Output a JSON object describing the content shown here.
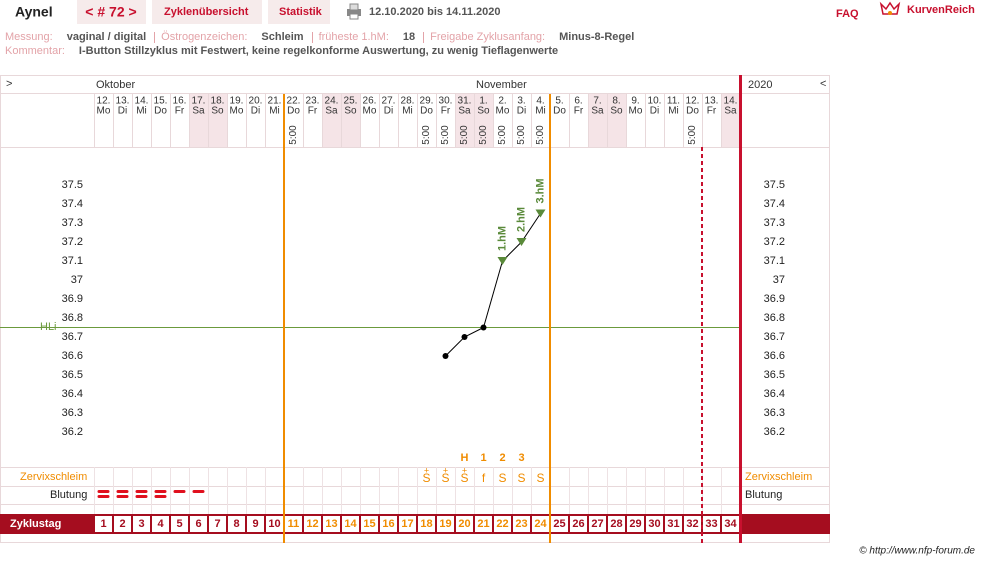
{
  "header": {
    "name": "Aynel",
    "cycle": "< # 72 >",
    "tabs": [
      "Zyklenübersicht",
      "Statistik"
    ],
    "date_range": "12.10.2020 bis 14.11.2020",
    "faq": "FAQ",
    "logo": "KurvenReich"
  },
  "info": {
    "items": [
      {
        "label": "Messung:",
        "value": "vaginal / digital"
      },
      {
        "label": "Östrogenzeichen:",
        "value": "Schleim"
      },
      {
        "label": "früheste 1.hM:",
        "value": 18
      },
      {
        "label": "Freigabe Zyklusanfang:",
        "value": "Minus-8-Regel"
      }
    ],
    "comment_label": "Kommentar:",
    "comment": "I-Button Stillzyklus mit Festwert, keine regelkonforme Auswertung, zu wenig Tieflagenwerte"
  },
  "chart_data": {
    "type": "line",
    "nav": {
      "prev": ">",
      "next": "<"
    },
    "months": [
      "Oktober",
      "November"
    ],
    "year": "2020",
    "categories": [
      "12.",
      "13.",
      "14.",
      "15.",
      "16.",
      "17.",
      "18.",
      "19.",
      "20.",
      "21.",
      "22.",
      "23.",
      "24.",
      "25.",
      "26.",
      "27.",
      "28.",
      "29.",
      "30.",
      "31.",
      "1.",
      "2.",
      "3.",
      "4.",
      "5.",
      "6.",
      "7.",
      "8.",
      "9.",
      "10.",
      "11.",
      "12.",
      "13.",
      "14."
    ],
    "weekdays": [
      "Mo",
      "Di",
      "Mi",
      "Do",
      "Fr",
      "Sa",
      "So",
      "Mo",
      "Di",
      "Mi",
      "Do",
      "Fr",
      "Sa",
      "So",
      "Mo",
      "Di",
      "Mi",
      "Do",
      "Fr",
      "Sa",
      "So",
      "Mo",
      "Di",
      "Mi",
      "Do",
      "Fr",
      "Sa",
      "So",
      "Mo",
      "Di",
      "Mi",
      "Do",
      "Fr",
      "Sa"
    ],
    "times": [
      null,
      null,
      null,
      null,
      null,
      null,
      null,
      null,
      null,
      null,
      "5:00",
      null,
      null,
      null,
      null,
      null,
      null,
      "5:00",
      "5:00",
      "5:00",
      "5:00",
      "5:00",
      "5:00",
      "5:00",
      null,
      null,
      null,
      null,
      null,
      null,
      null,
      "5:00",
      null,
      null
    ],
    "values": [
      null,
      null,
      null,
      null,
      null,
      null,
      null,
      null,
      null,
      null,
      null,
      null,
      null,
      null,
      null,
      null,
      null,
      null,
      36.6,
      36.7,
      36.75,
      37.1,
      37.2,
      37.35,
      null,
      null,
      null,
      null,
      null,
      null,
      null,
      null,
      null,
      null
    ],
    "line_color": "#000000",
    "hm_color": "#5a8a3a",
    "hm_labels": [
      null,
      null,
      null,
      null,
      null,
      null,
      null,
      null,
      null,
      null,
      null,
      null,
      null,
      null,
      null,
      null,
      null,
      null,
      null,
      null,
      null,
      "1.hM",
      "2.hM",
      "3.hM",
      null,
      null,
      null,
      null,
      null,
      null,
      null,
      null,
      null,
      null
    ],
    "ylim": [
      36.2,
      37.5
    ],
    "yticks": [
      36.2,
      36.3,
      36.4,
      36.5,
      36.6,
      36.7,
      36.8,
      36.9,
      37,
      37.1,
      37.2,
      37.3,
      37.4,
      37.5
    ],
    "hli": {
      "label": "HLi",
      "value": 36.75,
      "color": "#6b9a3c"
    },
    "peak_labels": [
      null,
      null,
      null,
      null,
      null,
      null,
      null,
      null,
      null,
      null,
      null,
      null,
      null,
      null,
      null,
      null,
      null,
      null,
      null,
      "H",
      "1",
      "2",
      "3",
      null,
      null,
      null,
      null,
      null,
      null,
      null,
      null,
      null,
      null,
      null
    ],
    "cervix_label": "Zervixschleim",
    "cervix": [
      null,
      null,
      null,
      null,
      null,
      null,
      null,
      null,
      null,
      null,
      null,
      null,
      null,
      null,
      null,
      null,
      null,
      "S",
      "S",
      "S",
      "f",
      "S",
      "S",
      "S",
      null,
      null,
      null,
      null,
      null,
      null,
      null,
      null,
      null,
      null
    ],
    "cervix_plus": [
      null,
      null,
      null,
      null,
      null,
      null,
      null,
      null,
      null,
      null,
      null,
      null,
      null,
      null,
      null,
      null,
      null,
      "+",
      "+",
      "+",
      null,
      null,
      null,
      null,
      null,
      null,
      null,
      null,
      null,
      null,
      null,
      null,
      null,
      null
    ],
    "bleeding_label": "Blutung",
    "bleeding": [
      2,
      2,
      2,
      2,
      1,
      1,
      null,
      null,
      null,
      null,
      null,
      null,
      null,
      null,
      null,
      null,
      null,
      null,
      null,
      null,
      null,
      null,
      null,
      null,
      null,
      null,
      null,
      null,
      null,
      null,
      null,
      null,
      null,
      null
    ],
    "bleeding_color": "#e0101e",
    "cycle_day_label": "Zyklustag",
    "cycle_days": [
      1,
      2,
      3,
      4,
      5,
      6,
      7,
      8,
      9,
      10,
      11,
      12,
      13,
      14,
      15,
      16,
      17,
      18,
      19,
      20,
      21,
      22,
      23,
      24,
      25,
      26,
      27,
      28,
      29,
      30,
      31,
      32,
      33,
      34
    ],
    "evaluation_lines": [
      10,
      24
    ],
    "evaluation_color": "#f08c00",
    "cycle_end_line": 32
  },
  "footer": "© http://www.nfp-forum.de"
}
